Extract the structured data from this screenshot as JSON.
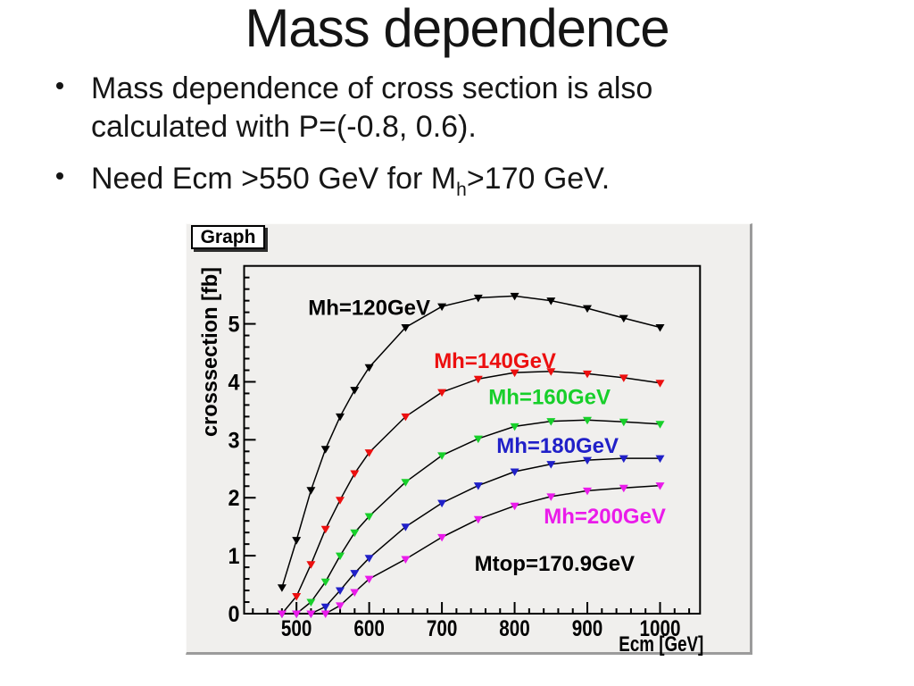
{
  "slide": {
    "title": "Mass dependence",
    "bullets": [
      {
        "text": "Mass dependence of cross section is also calculated with P=(-0.8, 0.6)."
      },
      {
        "pre": "Need Ecm >550 GeV for M",
        "sub": "h",
        "post": ">170 GeV."
      }
    ]
  },
  "graph": {
    "pad_title": "Graph"
  },
  "chart_data": {
    "type": "line",
    "title": "",
    "xlabel": "Ecm [GeV]",
    "ylabel": "crosssection [fb]",
    "xlim": [
      428,
      1055
    ],
    "ylim": [
      0,
      6
    ],
    "x_major_ticks": [
      500,
      600,
      700,
      800,
      900,
      1000
    ],
    "x_minor_step": 20,
    "y_major_ticks": [
      0,
      1,
      2,
      3,
      4,
      5
    ],
    "y_minor_step": 0.2,
    "grid": false,
    "legend_position": "none",
    "line_color": "#000000",
    "marker": "triangle-down",
    "x": [
      480,
      500,
      520,
      540,
      560,
      580,
      600,
      650,
      700,
      750,
      800,
      850,
      900,
      950,
      1000
    ],
    "series": [
      {
        "name": "Mh=120GeV",
        "color": "#000000",
        "values": [
          0.45,
          1.27,
          2.13,
          2.84,
          3.4,
          3.86,
          4.25,
          4.94,
          5.3,
          5.45,
          5.48,
          5.4,
          5.27,
          5.1,
          4.94
        ],
        "label": {
          "text": "Mh=120GeV",
          "x": 600,
          "y": 5.28
        }
      },
      {
        "name": "Mh=140GeV",
        "color": "#ec0f0f",
        "values": [
          0.0,
          0.3,
          0.85,
          1.46,
          1.96,
          2.42,
          2.78,
          3.4,
          3.82,
          4.05,
          4.16,
          4.18,
          4.14,
          4.07,
          3.98
        ],
        "label": {
          "text": "Mh=140GeV",
          "x": 773,
          "y": 4.36
        }
      },
      {
        "name": "Mh=160GeV",
        "color": "#17cf2a",
        "values": [
          0.0,
          0.0,
          0.2,
          0.55,
          1.0,
          1.4,
          1.68,
          2.27,
          2.73,
          3.02,
          3.23,
          3.32,
          3.34,
          3.31,
          3.27
        ],
        "label": {
          "text": "Mh=160GeV",
          "x": 848,
          "y": 3.74
        }
      },
      {
        "name": "Mh=180GeV",
        "color": "#2020c8",
        "values": [
          0.0,
          0.0,
          0.0,
          0.12,
          0.4,
          0.7,
          0.96,
          1.5,
          1.91,
          2.21,
          2.45,
          2.58,
          2.65,
          2.68,
          2.68
        ],
        "label": {
          "text": "Mh=180GeV",
          "x": 859,
          "y": 2.9
        }
      },
      {
        "name": "Mh=200GeV",
        "color": "#ea1bea",
        "values": [
          0.0,
          0.0,
          0.0,
          0.0,
          0.14,
          0.37,
          0.6,
          0.94,
          1.32,
          1.63,
          1.86,
          2.02,
          2.12,
          2.17,
          2.21
        ],
        "label": {
          "text": "Mh=200GeV",
          "x": 924,
          "y": 1.68
        }
      }
    ],
    "annotations": [
      {
        "text": "Mtop=170.9GeV",
        "x": 855,
        "y": 0.86,
        "color": "#000000"
      }
    ]
  }
}
